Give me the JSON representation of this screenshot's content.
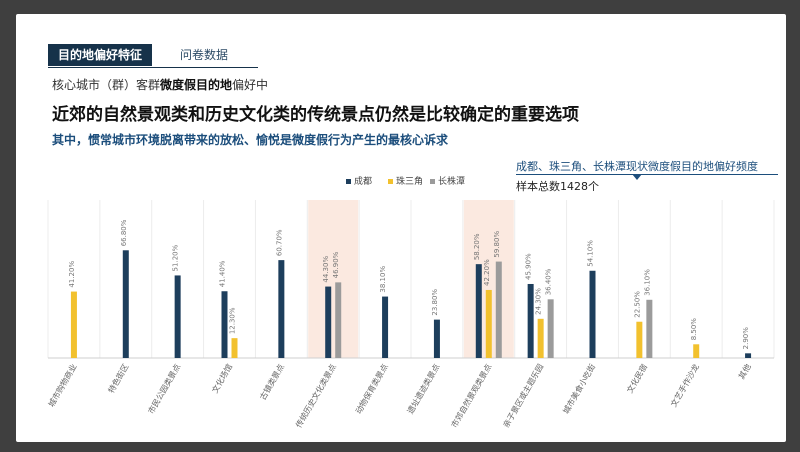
{
  "header": {
    "tag": "目的地偏好特征",
    "tag_secondary": "问卷数据",
    "sub_prefix": "核心城市（群）客群",
    "sub_bold": "微度假目的地",
    "sub_suffix": "偏好中",
    "headline": "近郊的自然景观类和历史文化类的传统景点仍然是比较确定的重要选项",
    "kicker": "其中，惯常城市环境脱离带来的放松、愉悦是微度假行为产生的最核心诉求",
    "note": "成都、珠三角、长株潭现状微度假目的地偏好频度",
    "sample": "样本总数1428个"
  },
  "chart_data": {
    "type": "bar",
    "categories": [
      "城市购物商业",
      "特色街区",
      "市民公园类景点",
      "文化场馆",
      "古镇类景点",
      "传统历史文化类景点",
      "动物保育类景点",
      "遗址遗迹类景点",
      "市郊自然景观类景点",
      "亲子景区或主题乐园",
      "城市美食小吃街",
      "文化民宿",
      "文艺手作沙龙",
      "其他"
    ],
    "series": [
      {
        "name": "成都",
        "color": "#1d3e5c",
        "values": [
          null,
          66.8,
          51.2,
          41.4,
          60.7,
          44.3,
          38.1,
          23.8,
          58.2,
          45.9,
          54.1,
          null,
          null,
          2.9
        ],
        "labels": [
          "",
          "66.80%",
          "51.20%",
          "41.40%",
          "60.70%",
          "44.30%",
          "38.10%",
          "23.80%",
          "58.20%",
          "45.90%",
          "54.10%",
          "",
          "",
          "2.90%"
        ]
      },
      {
        "name": "珠三角",
        "color": "#f2c12e",
        "values": [
          41.2,
          null,
          null,
          12.3,
          null,
          null,
          null,
          null,
          42.2,
          24.3,
          null,
          22.5,
          8.5,
          null
        ],
        "labels": [
          "41.20%",
          "",
          "",
          "12.30%",
          "",
          "",
          "",
          "",
          "42.20%",
          "24.30%",
          "",
          "22.50%",
          "8.50%",
          ""
        ]
      },
      {
        "name": "长株潭",
        "color": "#9b9b9b",
        "values": [
          null,
          null,
          null,
          null,
          null,
          46.9,
          null,
          null,
          59.8,
          36.4,
          null,
          36.1,
          null,
          null
        ],
        "labels": [
          "",
          "",
          "",
          "",
          "",
          "46.90%",
          "",
          "",
          "59.80%",
          "36.40%",
          "",
          "36.10%",
          "",
          ""
        ]
      }
    ],
    "highlight_categories": [
      "传统历史文化类景点",
      "市郊自然景观类景点"
    ],
    "ylim": [
      0,
      80
    ],
    "grid": false,
    "legend": "top-center"
  }
}
